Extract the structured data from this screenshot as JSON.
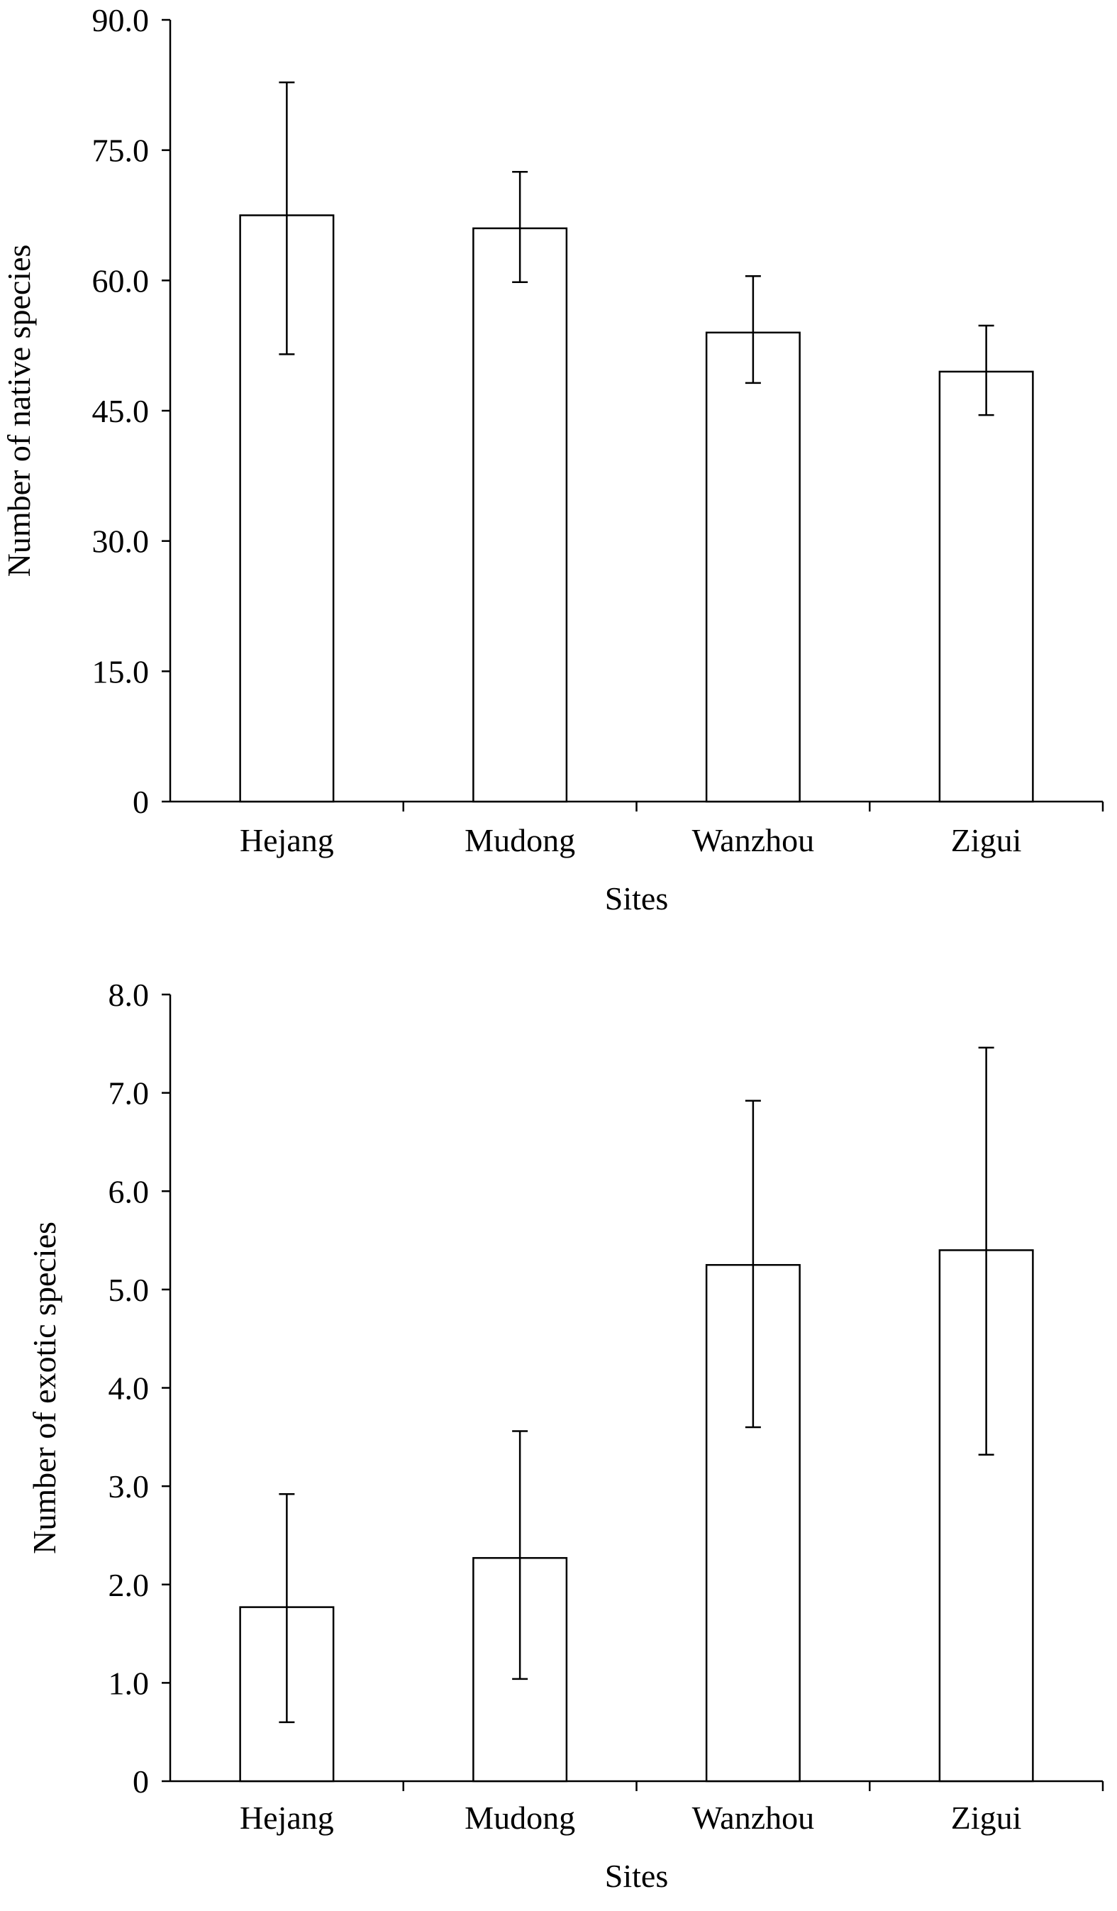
{
  "chart_data": [
    {
      "type": "bar",
      "categories": [
        "Hejang",
        "Mudong",
        "Wanzhou",
        "Zigui"
      ],
      "values": [
        67.5,
        66.0,
        54.0,
        49.5
      ],
      "error_low": [
        51.5,
        59.8,
        48.2,
        44.5
      ],
      "error_high": [
        82.8,
        72.5,
        60.5,
        54.8
      ],
      "xlabel": "Sites",
      "ylabel": "Number of native species",
      "ylim": [
        0,
        90
      ],
      "yticks": [
        0,
        15,
        30,
        45,
        60,
        75,
        90
      ],
      "ytick_labels": [
        "0",
        "15.0",
        "30.0",
        "45.0",
        "60.0",
        "75.0",
        "90.0"
      ],
      "grid": false
    },
    {
      "type": "bar",
      "categories": [
        "Hejang",
        "Mudong",
        "Wanzhou",
        "Zigui"
      ],
      "values": [
        1.77,
        2.27,
        5.25,
        5.4
      ],
      "error_low": [
        0.6,
        1.04,
        3.6,
        3.32
      ],
      "error_high": [
        2.92,
        3.56,
        6.92,
        7.46
      ],
      "xlabel": "Sites",
      "ylabel": "Number of exotic species",
      "ylim": [
        0,
        8
      ],
      "yticks": [
        0,
        1,
        2,
        3,
        4,
        5,
        6,
        7,
        8
      ],
      "ytick_labels": [
        "0",
        "1.0",
        "2.0",
        "3.0",
        "4.0",
        "5.0",
        "6.0",
        "7.0",
        "8.0"
      ],
      "grid": false
    }
  ],
  "colors": {
    "bar_fill": "#ffffff",
    "stroke": "#000000"
  }
}
